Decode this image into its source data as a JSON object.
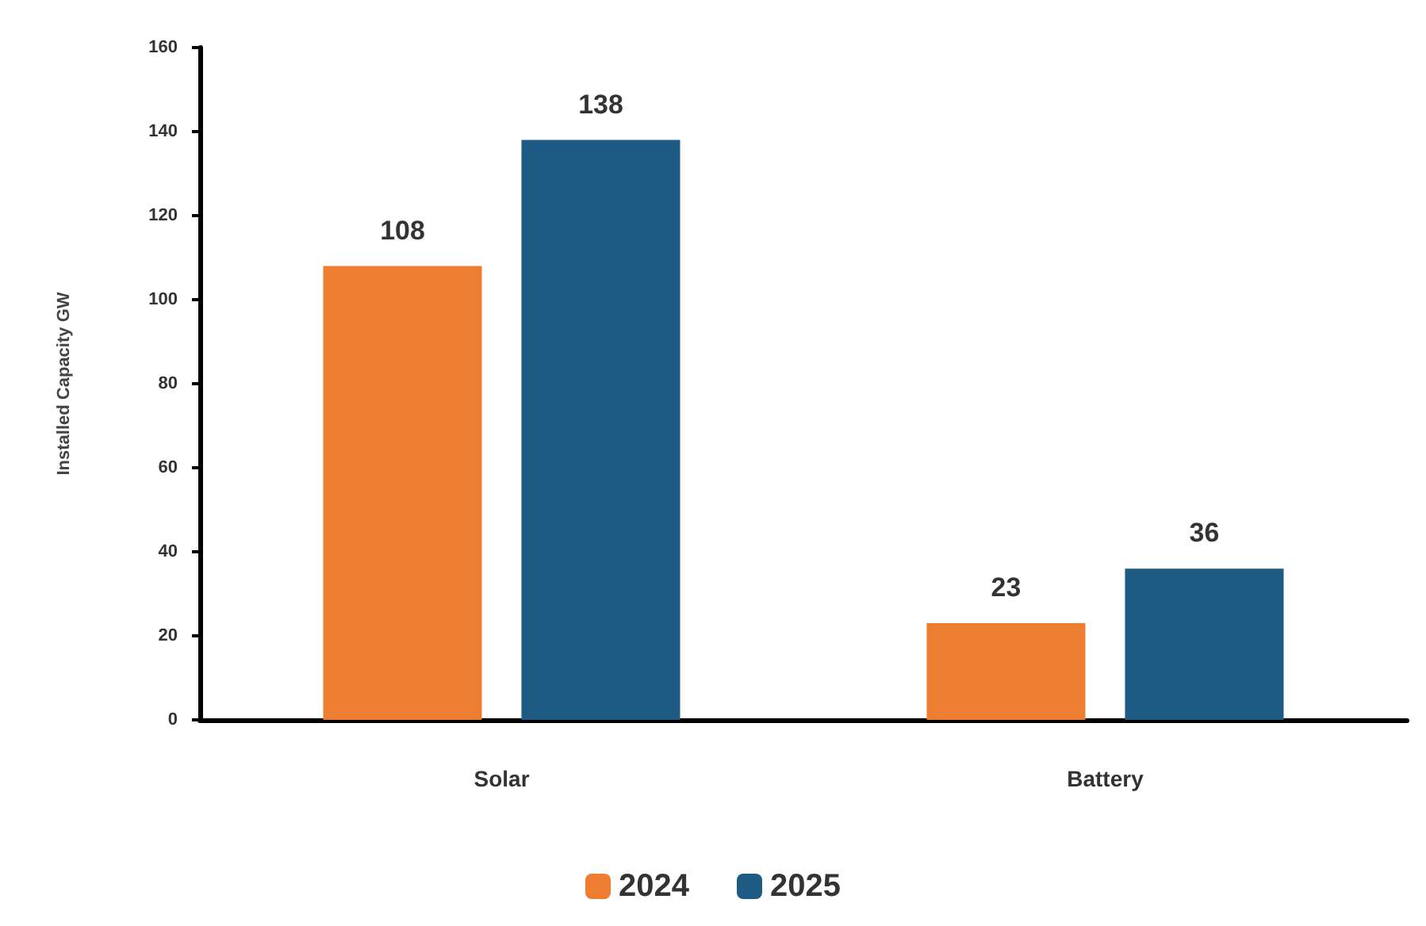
{
  "chart_data": {
    "type": "bar",
    "ylabel": "Installed Capacity GW",
    "categories": [
      "Solar",
      "Battery"
    ],
    "series": [
      {
        "name": "2024",
        "color": "#ed7d31",
        "values": [
          108,
          23
        ]
      },
      {
        "name": "2025",
        "color": "#1d5b84",
        "values": [
          138,
          36
        ]
      }
    ],
    "ylim": [
      0,
      160
    ],
    "yticks": [
      0,
      20,
      40,
      60,
      80,
      100,
      120,
      140,
      160
    ],
    "data_labels": true,
    "grid": false,
    "legend": "bottom"
  }
}
